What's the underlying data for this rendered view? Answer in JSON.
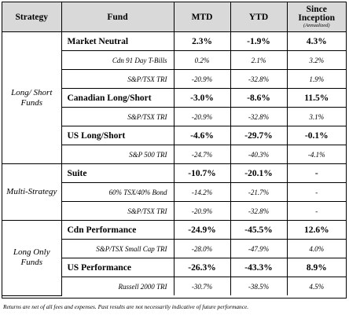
{
  "headers": {
    "strategy": "Strategy",
    "fund": "Fund",
    "mtd": "MTD",
    "ytd": "YTD",
    "since_line1": "Since",
    "since_line2": "Inception",
    "since_sub": "(Annualized)"
  },
  "groups": [
    {
      "strategy": "Long/ Short Funds",
      "rows": [
        {
          "type": "fund",
          "name": "Market Neutral",
          "mtd": "2.3%",
          "ytd": "-1.9%",
          "since": "4.3%"
        },
        {
          "type": "bench",
          "name": "Cdn 91 Day T-Bills",
          "mtd": "0.2%",
          "ytd": "2.1%",
          "since": "3.2%"
        },
        {
          "type": "bench",
          "name": "S&P/TSX TRI",
          "mtd": "-20.9%",
          "ytd": "-32.8%",
          "since": "1.9%"
        },
        {
          "type": "fund",
          "name": "Canadian Long/Short",
          "mtd": "-3.0%",
          "ytd": "-8.6%",
          "since": "11.5%"
        },
        {
          "type": "bench",
          "name": "S&P/TSX TRI",
          "mtd": "-20.9%",
          "ytd": "-32.8%",
          "since": "3.1%"
        },
        {
          "type": "fund",
          "name": "US Long/Short",
          "mtd": "-4.6%",
          "ytd": "-29.7%",
          "since": "-0.1%"
        },
        {
          "type": "bench",
          "name": "S&P 500 TRI",
          "mtd": "-24.7%",
          "ytd": "-40.3%",
          "since": "-4.1%"
        }
      ]
    },
    {
      "strategy": "Multi-Strategy",
      "rows": [
        {
          "type": "fund",
          "name": "Suite",
          "mtd": "-10.7%",
          "ytd": "-20.1%",
          "since": "-"
        },
        {
          "type": "bench",
          "name": "60% TSX/40% Bond",
          "mtd": "-14.2%",
          "ytd": "-21.7%",
          "since": "-"
        },
        {
          "type": "bench",
          "name": "S&P/TSX TRI",
          "mtd": "-20.9%",
          "ytd": "-32.8%",
          "since": "-"
        }
      ]
    },
    {
      "strategy": "Long Only Funds",
      "rows": [
        {
          "type": "fund",
          "name": "Cdn Performance",
          "mtd": "-24.9%",
          "ytd": "-45.5%",
          "since": "12.6%"
        },
        {
          "type": "bench",
          "name": "S&P/TSX Small Cap TRI",
          "mtd": "-28.0%",
          "ytd": "-47.9%",
          "since": "4.0%"
        },
        {
          "type": "fund",
          "name": "US Performance",
          "mtd": "-26.3%",
          "ytd": "-43.3%",
          "since": "8.9%"
        },
        {
          "type": "bench",
          "name": "Russell 2000 TRI",
          "mtd": "-30.7%",
          "ytd": "-38.5%",
          "since": "4.5%"
        }
      ]
    }
  ],
  "footnote": "Returns are net of all fees and expenses. Past results are not necessarily indicative of future performance."
}
